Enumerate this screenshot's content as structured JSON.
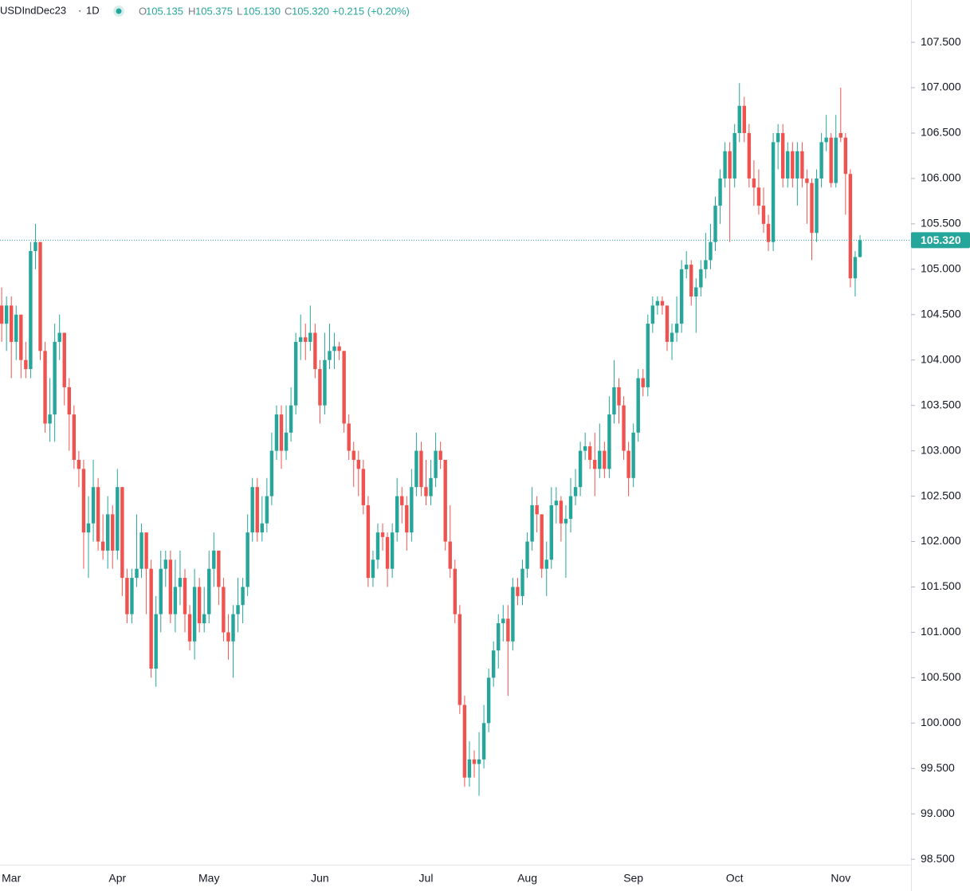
{
  "header": {
    "symbol": "USDIndDec23",
    "separator": "·",
    "interval": "1D",
    "open_label": "O",
    "open": "105.135",
    "high_label": "H",
    "high": "105.375",
    "low_label": "L",
    "low": "105.130",
    "close_label": "C",
    "close": "105.320",
    "change": "+0.215 (+0.20%)"
  },
  "chart_data": {
    "type": "candlestick",
    "up_color": "#26a69a",
    "down_color": "#ef5350",
    "ylim": [
      98.44,
      107.966
    ],
    "yticks": [
      {
        "value": 98.5,
        "label": "98.500"
      },
      {
        "value": 99,
        "label": "99.000"
      },
      {
        "value": 99.5,
        "label": "99.500"
      },
      {
        "value": 100,
        "label": "100.000"
      },
      {
        "value": 100.5,
        "label": "100.500"
      },
      {
        "value": 101,
        "label": "101.000"
      },
      {
        "value": 101.5,
        "label": "101.500"
      },
      {
        "value": 102,
        "label": "102.000"
      },
      {
        "value": 102.5,
        "label": "102.500"
      },
      {
        "value": 103,
        "label": "103.000"
      },
      {
        "value": 103.5,
        "label": "103.500"
      },
      {
        "value": 104,
        "label": "104.000"
      },
      {
        "value": 104.5,
        "label": "104.500"
      },
      {
        "value": 105,
        "label": "105.000"
      },
      {
        "value": 105.5,
        "label": "105.500"
      },
      {
        "value": 106,
        "label": "106.000"
      },
      {
        "value": 106.5,
        "label": "106.500"
      },
      {
        "value": 107,
        "label": "107.000"
      },
      {
        "value": 107.5,
        "label": "107.500"
      }
    ],
    "last_price": {
      "value": 105.32,
      "label": "105.320"
    },
    "categories": [
      null,
      null,
      "Mar",
      null,
      null,
      null,
      null,
      null,
      null,
      null,
      null,
      null,
      null,
      null,
      null,
      null,
      null,
      null,
      null,
      null,
      null,
      null,
      null,
      null,
      "Apr",
      null,
      null,
      null,
      null,
      null,
      null,
      null,
      null,
      null,
      null,
      null,
      null,
      null,
      null,
      null,
      null,
      null,
      null,
      "May",
      null,
      null,
      null,
      null,
      null,
      null,
      null,
      null,
      null,
      null,
      null,
      null,
      null,
      null,
      null,
      null,
      null,
      null,
      null,
      null,
      null,
      null,
      "Jun",
      null,
      null,
      null,
      null,
      null,
      null,
      null,
      null,
      null,
      null,
      null,
      null,
      null,
      null,
      null,
      null,
      null,
      null,
      null,
      null,
      null,
      "Jul",
      null,
      null,
      null,
      null,
      null,
      null,
      null,
      null,
      null,
      null,
      null,
      null,
      null,
      null,
      null,
      null,
      null,
      null,
      null,
      null,
      "Aug",
      null,
      null,
      null,
      null,
      null,
      null,
      null,
      null,
      null,
      null,
      null,
      null,
      null,
      null,
      null,
      null,
      null,
      null,
      null,
      null,
      null,
      "Sep",
      null,
      null,
      null,
      null,
      null,
      null,
      null,
      null,
      null,
      null,
      null,
      null,
      null,
      null,
      null,
      null,
      null,
      null,
      null,
      null,
      "Oct",
      null,
      null,
      null,
      null,
      null,
      null,
      null,
      null,
      null,
      null,
      null,
      null,
      null,
      null,
      null,
      null,
      null,
      null,
      null,
      null,
      null,
      "Nov",
      null,
      null,
      null,
      null
    ],
    "candles": [
      [
        104.6,
        104.8,
        104.2,
        104.4
      ],
      [
        104.4,
        104.7,
        104.1,
        104.6
      ],
      [
        104.6,
        104.7,
        103.8,
        104.2
      ],
      [
        104.2,
        104.6,
        104.0,
        104.5
      ],
      [
        104.5,
        104.5,
        103.8,
        104.0
      ],
      [
        104.0,
        104.2,
        103.8,
        103.9
      ],
      [
        103.9,
        105.3,
        103.8,
        105.2
      ],
      [
        105.2,
        105.5,
        105.0,
        105.3
      ],
      [
        105.3,
        105.3,
        104.0,
        104.1
      ],
      [
        104.1,
        104.2,
        103.2,
        103.3
      ],
      [
        103.3,
        103.8,
        103.1,
        103.4
      ],
      [
        103.4,
        104.4,
        103.1,
        104.2
      ],
      [
        104.2,
        104.5,
        104.0,
        104.3
      ],
      [
        104.3,
        104.3,
        103.5,
        103.7
      ],
      [
        103.7,
        103.8,
        103.0,
        103.4
      ],
      [
        103.4,
        103.5,
        102.8,
        102.9
      ],
      [
        102.9,
        103.0,
        102.6,
        102.8
      ],
      [
        102.8,
        102.9,
        101.7,
        102.1
      ],
      [
        102.1,
        102.5,
        101.6,
        102.2
      ],
      [
        102.2,
        102.9,
        102.0,
        102.6
      ],
      [
        102.6,
        102.7,
        101.9,
        102.0
      ],
      [
        102.0,
        102.3,
        101.8,
        101.9
      ],
      [
        101.9,
        102.5,
        101.7,
        102.3
      ],
      [
        102.3,
        102.4,
        101.7,
        101.9
      ],
      [
        101.9,
        102.8,
        101.8,
        102.6
      ],
      [
        102.6,
        102.6,
        101.4,
        101.6
      ],
      [
        101.6,
        101.7,
        101.1,
        101.2
      ],
      [
        101.2,
        101.7,
        101.1,
        101.6
      ],
      [
        101.6,
        102.3,
        101.5,
        101.7
      ],
      [
        101.7,
        102.2,
        101.6,
        102.1
      ],
      [
        102.1,
        102.1,
        101.2,
        101.7
      ],
      [
        101.7,
        101.8,
        100.5,
        100.6
      ],
      [
        100.6,
        101.4,
        100.4,
        101.2
      ],
      [
        101.2,
        101.9,
        101.0,
        101.7
      ],
      [
        101.7,
        101.9,
        101.5,
        101.8
      ],
      [
        101.8,
        101.9,
        101.1,
        101.2
      ],
      [
        101.2,
        101.8,
        101.0,
        101.5
      ],
      [
        101.5,
        101.9,
        101.3,
        101.6
      ],
      [
        101.6,
        101.7,
        101.0,
        101.2
      ],
      [
        101.2,
        101.3,
        100.8,
        100.9
      ],
      [
        100.9,
        101.7,
        100.7,
        101.5
      ],
      [
        101.5,
        101.6,
        101.0,
        101.1
      ],
      [
        101.1,
        101.5,
        101.0,
        101.2
      ],
      [
        101.2,
        101.9,
        101.1,
        101.7
      ],
      [
        101.7,
        102.1,
        101.5,
        101.9
      ],
      [
        101.9,
        101.9,
        101.3,
        101.5
      ],
      [
        101.5,
        101.6,
        100.9,
        101.0
      ],
      [
        101.0,
        101.2,
        100.7,
        100.9
      ],
      [
        100.9,
        101.3,
        100.5,
        101.2
      ],
      [
        101.2,
        101.6,
        101.0,
        101.3
      ],
      [
        101.3,
        101.6,
        101.1,
        101.5
      ],
      [
        101.5,
        102.3,
        101.4,
        102.1
      ],
      [
        102.1,
        102.7,
        102.0,
        102.6
      ],
      [
        102.6,
        102.7,
        102.0,
        102.1
      ],
      [
        102.1,
        102.5,
        102.0,
        102.2
      ],
      [
        102.2,
        102.7,
        102.1,
        102.5
      ],
      [
        102.5,
        103.2,
        102.4,
        103.0
      ],
      [
        103.0,
        103.5,
        102.9,
        103.4
      ],
      [
        103.4,
        103.5,
        102.8,
        103.0
      ],
      [
        103.0,
        103.5,
        102.9,
        103.2
      ],
      [
        103.2,
        103.7,
        103.1,
        103.5
      ],
      [
        103.5,
        104.3,
        103.4,
        104.2
      ],
      [
        104.2,
        104.5,
        104.0,
        104.25
      ],
      [
        104.25,
        104.4,
        104.0,
        104.2
      ],
      [
        104.2,
        104.6,
        104.1,
        104.3
      ],
      [
        104.3,
        104.4,
        103.8,
        103.9
      ],
      [
        103.9,
        104.0,
        103.3,
        103.5
      ],
      [
        103.5,
        104.3,
        103.4,
        104.0
      ],
      [
        104.0,
        104.4,
        103.9,
        104.1
      ],
      [
        104.1,
        104.3,
        103.9,
        104.15
      ],
      [
        104.15,
        104.2,
        104.0,
        104.1
      ],
      [
        104.1,
        104.1,
        103.2,
        103.3
      ],
      [
        103.3,
        103.4,
        102.9,
        103.0
      ],
      [
        103.0,
        103.1,
        102.6,
        102.9
      ],
      [
        102.9,
        103.0,
        102.5,
        102.8
      ],
      [
        102.8,
        102.9,
        102.3,
        102.4
      ],
      [
        102.4,
        102.5,
        101.5,
        101.6
      ],
      [
        101.6,
        101.9,
        101.5,
        101.8
      ],
      [
        101.8,
        102.2,
        101.7,
        102.1
      ],
      [
        102.1,
        102.2,
        101.9,
        102.05
      ],
      [
        102.05,
        102.1,
        101.5,
        101.7
      ],
      [
        101.7,
        102.2,
        101.6,
        102.1
      ],
      [
        102.1,
        102.7,
        102.0,
        102.5
      ],
      [
        102.5,
        102.6,
        102.2,
        102.4
      ],
      [
        102.4,
        102.5,
        101.9,
        102.1
      ],
      [
        102.1,
        102.8,
        102.0,
        102.6
      ],
      [
        102.6,
        103.2,
        102.5,
        103.0
      ],
      [
        103.0,
        103.1,
        102.5,
        102.6
      ],
      [
        102.6,
        102.9,
        102.4,
        102.5
      ],
      [
        102.5,
        102.9,
        102.4,
        102.7
      ],
      [
        102.7,
        103.2,
        102.6,
        103.0
      ],
      [
        103.0,
        103.1,
        102.8,
        102.9
      ],
      [
        102.9,
        102.9,
        101.9,
        102.0
      ],
      [
        102.0,
        102.4,
        101.6,
        101.7
      ],
      [
        101.7,
        101.8,
        101.1,
        101.2
      ],
      [
        101.2,
        101.3,
        100.1,
        100.2
      ],
      [
        100.2,
        100.3,
        99.3,
        99.4
      ],
      [
        99.4,
        99.8,
        99.3,
        99.6
      ],
      [
        99.6,
        99.7,
        99.4,
        99.55
      ],
      [
        99.55,
        99.9,
        99.2,
        99.6
      ],
      [
        99.6,
        100.2,
        99.5,
        100.0
      ],
      [
        100.0,
        100.6,
        99.9,
        100.5
      ],
      [
        100.5,
        100.9,
        100.4,
        100.8
      ],
      [
        100.8,
        101.2,
        100.6,
        101.1
      ],
      [
        101.1,
        101.3,
        100.9,
        101.15
      ],
      [
        101.15,
        101.3,
        100.3,
        100.9
      ],
      [
        100.9,
        101.6,
        100.8,
        101.5
      ],
      [
        101.5,
        101.6,
        101.3,
        101.4
      ],
      [
        101.4,
        101.8,
        101.3,
        101.7
      ],
      [
        101.7,
        102.1,
        101.6,
        102.0
      ],
      [
        102.0,
        102.6,
        101.9,
        102.4
      ],
      [
        102.4,
        102.5,
        102.1,
        102.3
      ],
      [
        102.3,
        102.3,
        101.6,
        101.7
      ],
      [
        101.7,
        102.0,
        101.4,
        101.8
      ],
      [
        101.8,
        102.6,
        101.7,
        102.4
      ],
      [
        102.4,
        102.6,
        102.2,
        102.45
      ],
      [
        102.45,
        102.5,
        102.0,
        102.2
      ],
      [
        102.2,
        102.4,
        101.6,
        102.25
      ],
      [
        102.25,
        102.7,
        102.1,
        102.5
      ],
      [
        102.5,
        102.8,
        102.4,
        102.6
      ],
      [
        102.6,
        103.1,
        102.5,
        103.0
      ],
      [
        103.0,
        103.2,
        102.9,
        103.05
      ],
      [
        103.05,
        103.1,
        102.8,
        102.9
      ],
      [
        102.9,
        103.2,
        102.5,
        102.8
      ],
      [
        102.8,
        103.3,
        102.7,
        103.0
      ],
      [
        103.0,
        103.1,
        102.7,
        102.8
      ],
      [
        102.8,
        103.6,
        102.7,
        103.4
      ],
      [
        103.4,
        104.0,
        103.3,
        103.7
      ],
      [
        103.7,
        103.8,
        103.3,
        103.5
      ],
      [
        103.5,
        103.6,
        102.9,
        103.0
      ],
      [
        103.0,
        103.1,
        102.5,
        102.7
      ],
      [
        102.7,
        103.3,
        102.6,
        103.2
      ],
      [
        103.2,
        103.9,
        103.1,
        103.8
      ],
      [
        103.8,
        103.9,
        103.6,
        103.7
      ],
      [
        103.7,
        104.5,
        103.6,
        104.4
      ],
      [
        104.4,
        104.7,
        104.3,
        104.6
      ],
      [
        104.6,
        104.7,
        104.5,
        104.65
      ],
      [
        104.65,
        104.7,
        104.5,
        104.6
      ],
      [
        104.6,
        104.6,
        104.1,
        104.2
      ],
      [
        104.2,
        104.4,
        104.0,
        104.3
      ],
      [
        104.3,
        104.7,
        104.2,
        104.4
      ],
      [
        104.4,
        105.1,
        104.3,
        105.0
      ],
      [
        105.0,
        105.2,
        104.9,
        105.05
      ],
      [
        105.05,
        105.1,
        104.6,
        104.7
      ],
      [
        104.7,
        104.9,
        104.3,
        104.8
      ],
      [
        104.8,
        105.1,
        104.7,
        105.0
      ],
      [
        105.0,
        105.4,
        104.9,
        105.1
      ],
      [
        105.1,
        105.5,
        105.0,
        105.3
      ],
      [
        105.3,
        105.8,
        105.2,
        105.7
      ],
      [
        105.7,
        106.1,
        105.5,
        106.0
      ],
      [
        106.0,
        106.4,
        105.9,
        106.3
      ],
      [
        106.3,
        106.4,
        105.3,
        106.0
      ],
      [
        106.0,
        106.6,
        105.9,
        106.5
      ],
      [
        106.5,
        107.05,
        106.4,
        106.8
      ],
      [
        106.8,
        106.9,
        106.4,
        106.5
      ],
      [
        106.5,
        106.6,
        105.9,
        106.0
      ],
      [
        106.0,
        106.2,
        105.7,
        105.9
      ],
      [
        105.9,
        106.1,
        105.6,
        105.7
      ],
      [
        105.7,
        105.9,
        105.4,
        105.5
      ],
      [
        105.5,
        105.6,
        105.2,
        105.3
      ],
      [
        105.3,
        106.5,
        105.2,
        106.4
      ],
      [
        106.4,
        106.6,
        106.1,
        106.5
      ],
      [
        106.5,
        106.6,
        105.9,
        106.0
      ],
      [
        106.0,
        106.4,
        105.9,
        106.3
      ],
      [
        106.3,
        106.4,
        105.9,
        106.0
      ],
      [
        106.0,
        106.4,
        105.7,
        106.3
      ],
      [
        106.3,
        106.4,
        105.9,
        106.0
      ],
      [
        106.0,
        106.1,
        105.5,
        105.95
      ],
      [
        105.95,
        106.0,
        105.1,
        105.4
      ],
      [
        105.4,
        106.1,
        105.3,
        106.0
      ],
      [
        106.0,
        106.5,
        105.9,
        106.4
      ],
      [
        106.4,
        106.7,
        106.3,
        106.45
      ],
      [
        106.45,
        106.5,
        105.9,
        105.95
      ],
      [
        105.95,
        106.7,
        105.9,
        106.45
      ],
      [
        106.5,
        107.0,
        106.4,
        106.45
      ],
      [
        106.45,
        106.5,
        105.6,
        106.05
      ],
      [
        106.05,
        106.1,
        104.8,
        104.9
      ],
      [
        104.9,
        105.2,
        104.7,
        105.135
      ],
      [
        105.135,
        105.375,
        105.13,
        105.32
      ]
    ]
  }
}
